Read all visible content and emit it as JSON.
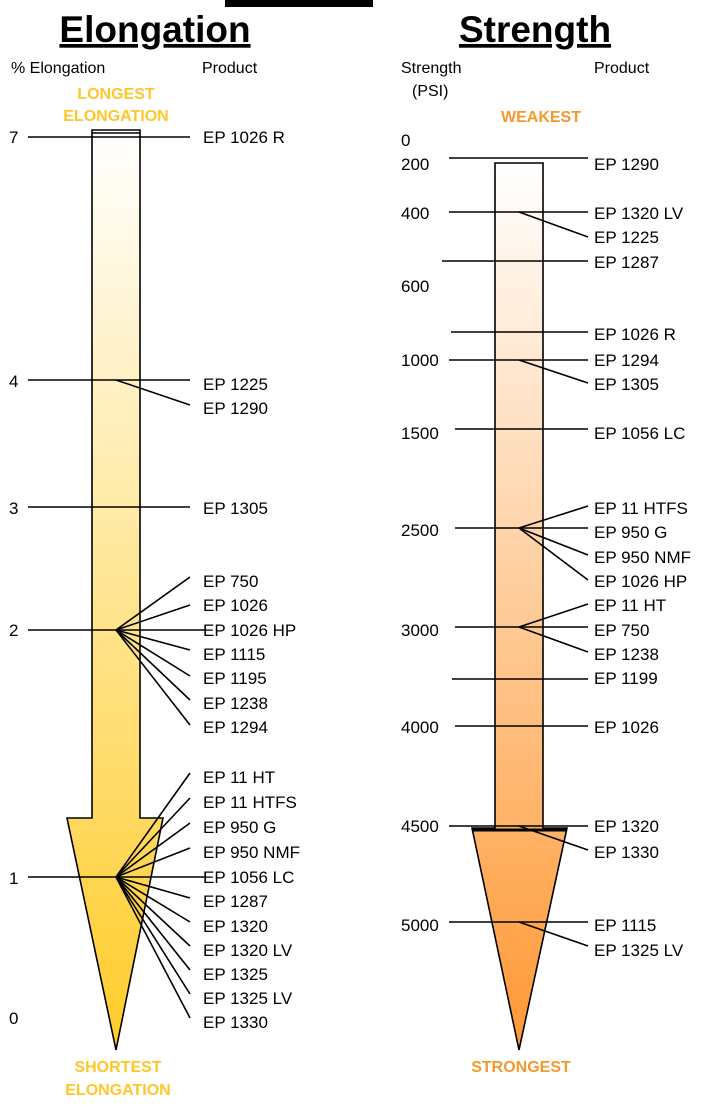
{
  "colors": {
    "elongation_caption": "#ffc629",
    "strength_caption": "#f5992e",
    "elongation_top": "#ffffff",
    "elongation_bottom": "#ffcc29",
    "strength_top": "#ffffff",
    "strength_bottom": "#ff9833"
  },
  "elongation": {
    "title": "Elongation",
    "axis_header": "% Elongation",
    "product_header": "Product",
    "top_caption_line1": "LONGEST",
    "top_caption_line2": "ELONGATION",
    "bottom_caption_line1": "SHORTEST",
    "bottom_caption_line2": "ELONGATION",
    "ticks": [
      "7",
      "4",
      "3",
      "2",
      "1",
      "0"
    ],
    "groups": [
      {
        "tick": "7",
        "products": [
          "EP 1026 R"
        ]
      },
      {
        "tick": "4",
        "products": [
          "EP 1225",
          "EP 1290"
        ]
      },
      {
        "tick": "3",
        "products": [
          "EP 1305"
        ]
      },
      {
        "tick": "2",
        "products": [
          "EP 750",
          "EP 1026",
          "EP 1026 HP",
          "EP 1115",
          "EP 1195",
          "EP 1238",
          "EP 1294"
        ]
      },
      {
        "tick": "1",
        "products": [
          "EP 11 HT",
          "EP 11 HTFS",
          "EP 950 G",
          "EP 950 NMF",
          "EP 1056 LC",
          "EP 1287",
          "EP 1320",
          "EP 1320 LV",
          "EP 1325",
          "EP 1325 LV",
          "EP 1330"
        ]
      }
    ]
  },
  "strength": {
    "title": "Strength",
    "axis_header_line1": "Strength",
    "axis_header_line2": "(PSI)",
    "product_header": "Product",
    "top_caption": "WEAKEST",
    "bottom_caption": "STRONGEST",
    "ticks": [
      "0",
      "200",
      "400",
      "600",
      "1000",
      "1500",
      "2500",
      "3000",
      "4000",
      "4500",
      "5000"
    ],
    "groups": [
      {
        "tick": "",
        "products": [
          "EP 1290"
        ]
      },
      {
        "tick": "400",
        "products": [
          "EP 1320 LV",
          "EP 1225"
        ]
      },
      {
        "tick": "",
        "products": [
          "EP 1287"
        ]
      },
      {
        "tick": "",
        "products": [
          "EP 1026 R"
        ]
      },
      {
        "tick": "1000",
        "products": [
          "EP 1294",
          "EP 1305"
        ]
      },
      {
        "tick": "1500",
        "products": [
          "EP 1056 LC"
        ]
      },
      {
        "tick": "2500",
        "products": [
          "EP 11 HTFS",
          "EP 950 G",
          "EP 950 NMF",
          "EP 1026 HP"
        ]
      },
      {
        "tick": "3000",
        "products": [
          "EP 11 HT",
          "EP 750",
          "EP 1238"
        ]
      },
      {
        "tick": "",
        "products": [
          "EP 1199"
        ]
      },
      {
        "tick": "4000",
        "products": [
          "EP 1026"
        ]
      },
      {
        "tick": "4500",
        "products": [
          "EP 1320",
          "EP 1330"
        ]
      },
      {
        "tick": "5000",
        "products": [
          "EP 1115",
          "EP 1325 LV"
        ]
      }
    ]
  }
}
